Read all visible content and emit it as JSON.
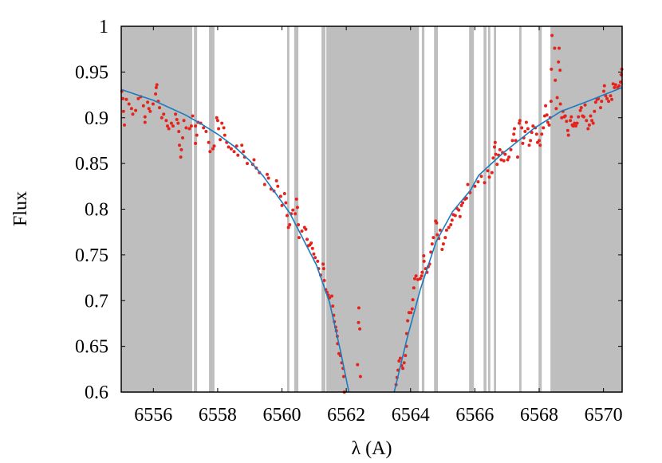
{
  "chart_data": {
    "type": "scatter",
    "title": "",
    "xlabel": "λ (A)",
    "ylabel": "Flux",
    "xlim": [
      6555.0,
      6570.58
    ],
    "ylim": [
      0.6,
      1.0
    ],
    "grid": false,
    "x_ticks": [
      "6556",
      "6558",
      "6560",
      "6562",
      "6564",
      "6566",
      "6568",
      "6570"
    ],
    "x_tick_values": [
      6556,
      6558,
      6560,
      6562,
      6564,
      6566,
      6568,
      6570
    ],
    "y_ticks": [
      "0.6",
      "0.65",
      "0.7",
      "0.75",
      "0.8",
      "0.85",
      "0.9",
      "0.95",
      "1"
    ],
    "y_tick_values": [
      0.6,
      0.65,
      0.7,
      0.75,
      0.8,
      0.85,
      0.9,
      0.95,
      1.0
    ],
    "colors": {
      "points": "#e5231b",
      "model": "#1b7bbf",
      "masked_band": "#bebebe"
    },
    "masked_bands": [
      [
        6555.0,
        6557.21
      ],
      [
        6557.26,
        6557.36
      ],
      [
        6557.73,
        6557.9
      ],
      [
        6560.16,
        6560.23
      ],
      [
        6560.38,
        6560.51
      ],
      [
        6561.23,
        6561.35
      ],
      [
        6561.38,
        6564.26
      ],
      [
        6564.35,
        6564.43
      ],
      [
        6564.73,
        6564.85
      ],
      [
        6565.82,
        6565.97
      ],
      [
        6566.27,
        6566.36
      ],
      [
        6566.41,
        6566.48
      ],
      [
        6566.59,
        6566.66
      ],
      [
        6567.38,
        6567.45
      ],
      [
        6567.98,
        6568.08
      ],
      [
        6568.35,
        6570.58
      ]
    ],
    "model_line": {
      "x": [
        6555.0,
        6555.5,
        6556.0,
        6556.5,
        6557.0,
        6557.5,
        6558.0,
        6558.5,
        6559.0,
        6559.42,
        6560.24,
        6561.07,
        6561.48,
        6561.82,
        6562.08,
        6563.49,
        6563.88,
        6564.3,
        6564.79,
        6565.3,
        6565.87,
        6566.12,
        6566.86,
        6567.86,
        6568.68,
        6569.51,
        6570.0,
        6570.58
      ],
      "y": [
        0.931,
        0.925,
        0.919,
        0.911,
        0.903,
        0.893,
        0.882,
        0.869,
        0.853,
        0.836,
        0.796,
        0.739,
        0.698,
        0.645,
        0.6,
        0.6,
        0.657,
        0.712,
        0.764,
        0.797,
        0.821,
        0.837,
        0.861,
        0.889,
        0.907,
        0.918,
        0.925,
        0.933
      ]
    },
    "points": [
      [
        6555.02,
        0.929
      ],
      [
        6555.05,
        0.921
      ],
      [
        6555.07,
        0.907
      ],
      [
        6555.1,
        0.892
      ],
      [
        6555.16,
        0.92
      ],
      [
        6555.24,
        0.915
      ],
      [
        6555.32,
        0.91
      ],
      [
        6555.36,
        0.904
      ],
      [
        6555.45,
        0.908
      ],
      [
        6555.53,
        0.921
      ],
      [
        6555.61,
        0.923
      ],
      [
        6555.69,
        0.913
      ],
      [
        6555.74,
        0.901
      ],
      [
        6555.74,
        0.895
      ],
      [
        6555.82,
        0.917
      ],
      [
        6555.86,
        0.91
      ],
      [
        6555.9,
        0.907
      ],
      [
        6555.99,
        0.915
      ],
      [
        6556.07,
        0.926
      ],
      [
        6556.09,
        0.933
      ],
      [
        6556.11,
        0.936
      ],
      [
        6556.15,
        0.918
      ],
      [
        6556.19,
        0.911
      ],
      [
        6556.26,
        0.9
      ],
      [
        6556.32,
        0.904
      ],
      [
        6556.4,
        0.897
      ],
      [
        6556.44,
        0.891
      ],
      [
        6556.48,
        0.888
      ],
      [
        6556.56,
        0.894
      ],
      [
        6556.61,
        0.891
      ],
      [
        6556.69,
        0.904
      ],
      [
        6556.73,
        0.898
      ],
      [
        6556.77,
        0.894
      ],
      [
        6556.79,
        0.885
      ],
      [
        6556.81,
        0.87
      ],
      [
        6556.87,
        0.865
      ],
      [
        6556.85,
        0.857
      ],
      [
        6556.91,
        0.878
      ],
      [
        6556.95,
        0.897
      ],
      [
        6557.02,
        0.889
      ],
      [
        6557.12,
        0.888
      ],
      [
        6557.18,
        0.891
      ],
      [
        6557.22,
        0.902
      ],
      [
        6557.31,
        0.891
      ],
      [
        6557.35,
        0.881
      ],
      [
        6557.31,
        0.872
      ],
      [
        6557.39,
        0.895
      ],
      [
        6557.47,
        0.894
      ],
      [
        6557.56,
        0.889
      ],
      [
        6557.64,
        0.885
      ],
      [
        6557.72,
        0.873
      ],
      [
        6557.76,
        0.863
      ],
      [
        6557.85,
        0.866
      ],
      [
        6557.89,
        0.869
      ],
      [
        6557.97,
        0.9
      ],
      [
        6558.0,
        0.897
      ],
      [
        6558.03,
        0.888
      ],
      [
        6558.08,
        0.876
      ],
      [
        6558.13,
        0.894
      ],
      [
        6558.19,
        0.889
      ],
      [
        6558.22,
        0.881
      ],
      [
        6558.28,
        0.873
      ],
      [
        6558.34,
        0.868
      ],
      [
        6558.42,
        0.866
      ],
      [
        6558.51,
        0.863
      ],
      [
        6558.59,
        0.869
      ],
      [
        6558.63,
        0.859
      ],
      [
        6558.75,
        0.87
      ],
      [
        6558.8,
        0.863
      ],
      [
        6558.84,
        0.857
      ],
      [
        6558.92,
        0.85
      ],
      [
        6559.09,
        0.849
      ],
      [
        6559.13,
        0.854
      ],
      [
        6559.2,
        0.845
      ],
      [
        6559.3,
        0.84
      ],
      [
        6559.46,
        0.827
      ],
      [
        6559.54,
        0.838
      ],
      [
        6559.58,
        0.834
      ],
      [
        6559.66,
        0.822
      ],
      [
        6559.75,
        0.82
      ],
      [
        6559.83,
        0.831
      ],
      [
        6559.87,
        0.825
      ],
      [
        6559.96,
        0.814
      ],
      [
        6560.0,
        0.804
      ],
      [
        6560.08,
        0.817
      ],
      [
        6560.12,
        0.807
      ],
      [
        6560.16,
        0.793
      ],
      [
        6560.2,
        0.78
      ],
      [
        6560.24,
        0.783
      ],
      [
        6560.29,
        0.795
      ],
      [
        6560.34,
        0.799
      ],
      [
        6560.41,
        0.795
      ],
      [
        6560.45,
        0.811
      ],
      [
        6560.48,
        0.802
      ],
      [
        6560.51,
        0.783
      ],
      [
        6560.53,
        0.769
      ],
      [
        6560.62,
        0.776
      ],
      [
        6560.7,
        0.78
      ],
      [
        6560.74,
        0.778
      ],
      [
        6560.78,
        0.767
      ],
      [
        6560.82,
        0.76
      ],
      [
        6560.87,
        0.761
      ],
      [
        6560.91,
        0.763
      ],
      [
        6560.95,
        0.757
      ],
      [
        6560.99,
        0.751
      ],
      [
        6561.03,
        0.747
      ],
      [
        6561.11,
        0.743
      ],
      [
        6561.14,
        0.735
      ],
      [
        6561.2,
        0.728
      ],
      [
        6561.28,
        0.74
      ],
      [
        6561.3,
        0.735
      ],
      [
        6561.32,
        0.722
      ],
      [
        6561.36,
        0.712
      ],
      [
        6561.4,
        0.709
      ],
      [
        6561.44,
        0.706
      ],
      [
        6561.48,
        0.703
      ],
      [
        6561.55,
        0.705
      ],
      [
        6561.58,
        0.694
      ],
      [
        6561.61,
        0.684
      ],
      [
        6561.63,
        0.677
      ],
      [
        6561.67,
        0.671
      ],
      [
        6561.69,
        0.667
      ],
      [
        6561.72,
        0.661
      ],
      [
        6561.73,
        0.653
      ],
      [
        6561.77,
        0.642
      ],
      [
        6561.82,
        0.64
      ],
      [
        6561.86,
        0.632
      ],
      [
        6561.9,
        0.626
      ],
      [
        6561.92,
        0.617
      ],
      [
        6561.94,
        0.6
      ],
      [
        6562.39,
        0.692
      ],
      [
        6562.38,
        0.676
      ],
      [
        6562.42,
        0.669
      ],
      [
        6562.35,
        0.63
      ],
      [
        6562.44,
        0.617
      ],
      [
        6563.55,
        0.608
      ],
      [
        6563.58,
        0.616
      ],
      [
        6563.61,
        0.624
      ],
      [
        6563.64,
        0.634
      ],
      [
        6563.68,
        0.637
      ],
      [
        6563.72,
        0.629
      ],
      [
        6563.76,
        0.626
      ],
      [
        6563.8,
        0.632
      ],
      [
        6563.84,
        0.64
      ],
      [
        6563.87,
        0.65
      ],
      [
        6563.88,
        0.664
      ],
      [
        6563.91,
        0.678
      ],
      [
        6563.95,
        0.687
      ],
      [
        6564.01,
        0.687
      ],
      [
        6564.05,
        0.691
      ],
      [
        6564.07,
        0.701
      ],
      [
        6564.1,
        0.714
      ],
      [
        6564.13,
        0.724
      ],
      [
        6564.17,
        0.727
      ],
      [
        6564.23,
        0.723
      ],
      [
        6564.3,
        0.724
      ],
      [
        6564.34,
        0.727
      ],
      [
        6564.36,
        0.731
      ],
      [
        6564.42,
        0.743
      ],
      [
        6564.41,
        0.749
      ],
      [
        6564.47,
        0.735
      ],
      [
        6564.51,
        0.731
      ],
      [
        6564.55,
        0.737
      ],
      [
        6564.59,
        0.74
      ],
      [
        6564.63,
        0.753
      ],
      [
        6564.67,
        0.762
      ],
      [
        6564.71,
        0.769
      ],
      [
        6564.78,
        0.787
      ],
      [
        6564.81,
        0.785
      ],
      [
        6564.83,
        0.772
      ],
      [
        6564.88,
        0.768
      ],
      [
        6564.92,
        0.777
      ],
      [
        6564.98,
        0.756
      ],
      [
        6565.02,
        0.762
      ],
      [
        6565.08,
        0.769
      ],
      [
        6565.12,
        0.777
      ],
      [
        6565.19,
        0.78
      ],
      [
        6565.25,
        0.783
      ],
      [
        6565.29,
        0.788
      ],
      [
        6565.33,
        0.794
      ],
      [
        6565.39,
        0.793
      ],
      [
        6565.44,
        0.801
      ],
      [
        6565.5,
        0.799
      ],
      [
        6565.54,
        0.792
      ],
      [
        6565.58,
        0.804
      ],
      [
        6565.62,
        0.807
      ],
      [
        6565.69,
        0.811
      ],
      [
        6565.74,
        0.812
      ],
      [
        6565.78,
        0.827
      ],
      [
        6565.85,
        0.818
      ],
      [
        6566.0,
        0.825
      ],
      [
        6566.1,
        0.83
      ],
      [
        6566.2,
        0.836
      ],
      [
        6566.3,
        0.829
      ],
      [
        6566.4,
        0.842
      ],
      [
        6566.45,
        0.835
      ],
      [
        6566.53,
        0.84
      ],
      [
        6566.57,
        0.856
      ],
      [
        6566.61,
        0.868
      ],
      [
        6566.63,
        0.873
      ],
      [
        6566.65,
        0.86
      ],
      [
        6566.69,
        0.849
      ],
      [
        6566.74,
        0.859
      ],
      [
        6566.78,
        0.865
      ],
      [
        6566.82,
        0.854
      ],
      [
        6566.86,
        0.862
      ],
      [
        6566.9,
        0.853
      ],
      [
        6566.94,
        0.86
      ],
      [
        6567.02,
        0.854
      ],
      [
        6567.06,
        0.857
      ],
      [
        6567.12,
        0.865
      ],
      [
        6567.17,
        0.875
      ],
      [
        6567.21,
        0.882
      ],
      [
        6567.23,
        0.888
      ],
      [
        6567.27,
        0.875
      ],
      [
        6567.33,
        0.857
      ],
      [
        6567.38,
        0.894
      ],
      [
        6567.4,
        0.897
      ],
      [
        6567.46,
        0.889
      ],
      [
        6567.49,
        0.872
      ],
      [
        6567.52,
        0.878
      ],
      [
        6567.56,
        0.885
      ],
      [
        6567.6,
        0.895
      ],
      [
        6567.65,
        0.888
      ],
      [
        6567.69,
        0.87
      ],
      [
        6567.73,
        0.875
      ],
      [
        6567.77,
        0.884
      ],
      [
        6567.81,
        0.891
      ],
      [
        6567.88,
        0.889
      ],
      [
        6567.92,
        0.882
      ],
      [
        6567.95,
        0.873
      ],
      [
        6568.0,
        0.875
      ],
      [
        6568.03,
        0.87
      ],
      [
        6568.08,
        0.882
      ],
      [
        6568.13,
        0.889
      ],
      [
        6568.17,
        0.902
      ],
      [
        6568.2,
        0.913
      ],
      [
        6568.24,
        0.903
      ],
      [
        6568.27,
        0.895
      ],
      [
        6568.31,
        0.892
      ],
      [
        6568.34,
        0.9
      ],
      [
        6568.37,
        0.918
      ],
      [
        6568.38,
        0.953
      ],
      [
        6568.4,
        0.99
      ],
      [
        6568.48,
        0.976
      ],
      [
        6568.5,
        0.941
      ],
      [
        6568.53,
        0.91
      ],
      [
        6568.56,
        0.922
      ],
      [
        6568.6,
        0.961
      ],
      [
        6568.62,
        0.976
      ],
      [
        6568.65,
        0.952
      ],
      [
        6568.66,
        0.915
      ],
      [
        6568.7,
        0.9
      ],
      [
        6568.74,
        0.907
      ],
      [
        6568.78,
        0.901
      ],
      [
        6568.81,
        0.902
      ],
      [
        6568.85,
        0.896
      ],
      [
        6568.89,
        0.886
      ],
      [
        6568.91,
        0.881
      ],
      [
        6568.97,
        0.897
      ],
      [
        6569.0,
        0.901
      ],
      [
        6569.03,
        0.892
      ],
      [
        6569.06,
        0.891
      ],
      [
        6569.1,
        0.894
      ],
      [
        6569.14,
        0.891
      ],
      [
        6569.18,
        0.894
      ],
      [
        6569.22,
        0.901
      ],
      [
        6569.28,
        0.908
      ],
      [
        6569.31,
        0.911
      ],
      [
        6569.35,
        0.902
      ],
      [
        6569.39,
        0.901
      ],
      [
        6569.43,
        0.914
      ],
      [
        6569.47,
        0.897
      ],
      [
        6569.52,
        0.888
      ],
      [
        6569.56,
        0.892
      ],
      [
        6569.6,
        0.902
      ],
      [
        6569.64,
        0.897
      ],
      [
        6569.68,
        0.894
      ],
      [
        6569.72,
        0.907
      ],
      [
        6569.76,
        0.917
      ],
      [
        6569.8,
        0.92
      ],
      [
        6569.84,
        0.921
      ],
      [
        6569.91,
        0.911
      ],
      [
        6569.94,
        0.918
      ],
      [
        6570.01,
        0.929
      ],
      [
        6570.03,
        0.935
      ],
      [
        6570.07,
        0.924
      ],
      [
        6570.11,
        0.921
      ],
      [
        6570.16,
        0.918
      ],
      [
        6570.22,
        0.924
      ],
      [
        6570.26,
        0.92
      ],
      [
        6570.3,
        0.937
      ],
      [
        6570.34,
        0.933
      ],
      [
        6570.38,
        0.936
      ],
      [
        6570.44,
        0.933
      ],
      [
        6570.49,
        0.935
      ],
      [
        6570.53,
        0.939
      ],
      [
        6570.55,
        0.947
      ],
      [
        6570.57,
        0.953
      ]
    ]
  }
}
